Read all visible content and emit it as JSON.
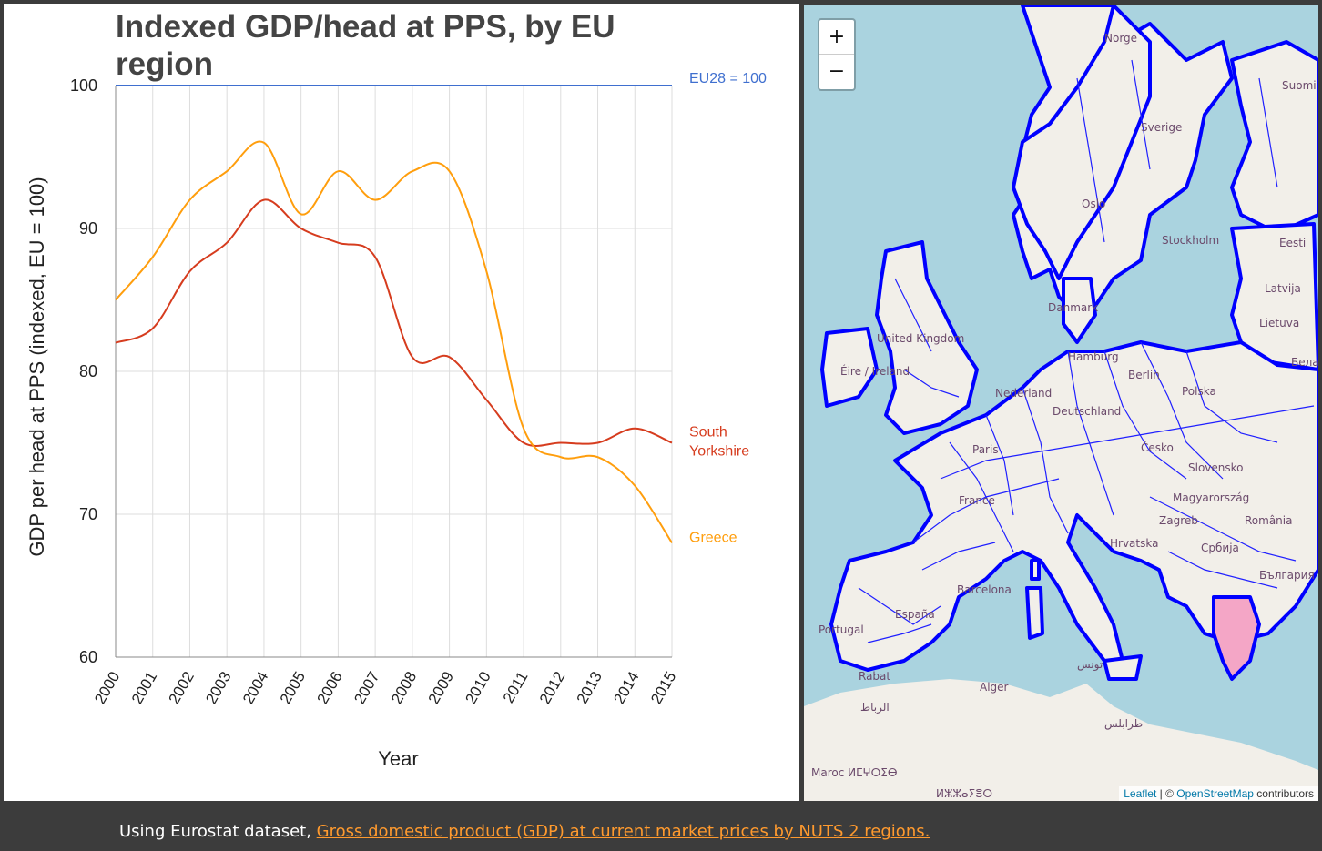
{
  "chart_data": {
    "type": "line",
    "title": "Indexed GDP/head at PPS, by EU region",
    "title_lines": [
      "Indexed GDP/head at PPS, by EU",
      "region"
    ],
    "xlabel": "Year",
    "ylabel": "GDP per head at PPS (indexed, EU = 100)",
    "ylim": [
      60,
      100
    ],
    "yticks": [
      60,
      70,
      80,
      90,
      100
    ],
    "x": [
      2000,
      2001,
      2002,
      2003,
      2004,
      2005,
      2006,
      2007,
      2008,
      2009,
      2010,
      2011,
      2012,
      2013,
      2014,
      2015
    ],
    "grid": true,
    "series": [
      {
        "name": "EU28 = 100",
        "color": "#3f6fcf",
        "values": [
          100,
          100,
          100,
          100,
          100,
          100,
          100,
          100,
          100,
          100,
          100,
          100,
          100,
          100,
          100,
          100
        ]
      },
      {
        "name": "South Yorkshire",
        "color": "#d63c1e",
        "values": [
          82,
          83,
          87,
          89,
          92,
          90,
          89,
          88,
          81,
          81,
          78,
          75,
          75,
          75,
          76,
          75
        ]
      },
      {
        "name": "Greece",
        "color": "#ff9e0d",
        "values": [
          85,
          88,
          92,
          94,
          96,
          91,
          94,
          92,
          94,
          94,
          87,
          76,
          74,
          74,
          72,
          68
        ]
      }
    ]
  },
  "map": {
    "zoom_in_label": "+",
    "zoom_out_label": "−",
    "attribution": {
      "leaflet": "Leaflet",
      "separator": " | © ",
      "osm": "OpenStreetMap",
      "suffix": " contributors"
    },
    "place_labels": [
      "Norge",
      "Sverige",
      "Suomi",
      "Oslo",
      "Stockholm",
      "Eesti",
      "Latvija",
      "Lietuva",
      "Беларусь",
      "Danmark",
      "Éire / Ireland",
      "United Kingdom",
      "Hamburg",
      "Berlin",
      "Polska",
      "Nederland",
      "Deutschland",
      "Česko",
      "Slovensko",
      "Paris",
      "France",
      "Magyarország",
      "Zagreb",
      "România",
      "Hrvatska",
      "Србија",
      "България",
      "Barcelona",
      "España",
      "Portugal",
      "Alger",
      "الرباط",
      "Rabat",
      "تونس",
      "طرابلس",
      "Maroc ⵍⵎⵖⵔⵉⴱ",
      "ⵍⵣⵣⴰⵢⴻⵔ"
    ]
  },
  "footer": {
    "prefix": "Using Eurostat dataset, ",
    "link_text": "Gross domestic product (GDP) at current market prices by NUTS 2 regions."
  },
  "colors": {
    "background": "#3c3c3c",
    "link": "#ff9a2e",
    "map_border": "#0000ff",
    "map_water": "#aad3df",
    "greece_fill": "#f4a6c6"
  }
}
